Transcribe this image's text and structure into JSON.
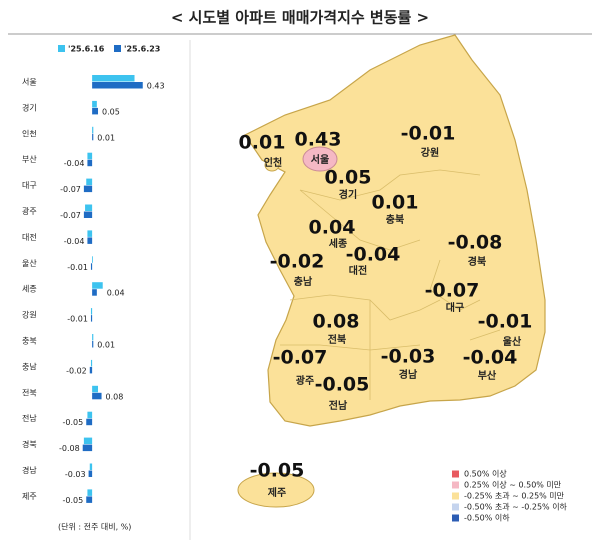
{
  "chart_data": {
    "type": "bar",
    "title": "< 시도별 아파트 매매가격지수 변동률 >",
    "note": "(단위 : 전주 대비, %)",
    "categories": [
      "서울",
      "경기",
      "인천",
      "부산",
      "대구",
      "광주",
      "대전",
      "울산",
      "세종",
      "강원",
      "충북",
      "충남",
      "전북",
      "전남",
      "경북",
      "경남",
      "제주"
    ],
    "series": [
      {
        "name": "'25.6.16",
        "color": "#3dc3ef",
        "values": [
          0.36,
          0.04,
          0.01,
          -0.04,
          -0.05,
          -0.06,
          -0.04,
          0.0,
          0.09,
          -0.01,
          0.01,
          -0.01,
          0.05,
          -0.04,
          -0.07,
          -0.02,
          -0.04
        ]
      },
      {
        "name": "'25.6.23",
        "color": "#1f6cc4",
        "values": [
          0.43,
          0.05,
          0.01,
          -0.04,
          -0.07,
          -0.07,
          -0.04,
          -0.01,
          0.04,
          -0.01,
          0.01,
          -0.02,
          0.08,
          -0.05,
          -0.08,
          -0.03,
          -0.05
        ]
      }
    ],
    "xlim": [
      -0.12,
      0.5
    ],
    "map_legend": [
      {
        "label": "0.50% 이상",
        "color": "#e85a60"
      },
      {
        "label": "0.25% 이상 ~ 0.50% 미만",
        "color": "#f5b8c4"
      },
      {
        "label": "-0.25% 초과 ~ 0.25% 미만",
        "color": "#fbe199"
      },
      {
        "label": "-0.50% 초과 ~ -0.25% 이하",
        "color": "#c5d4ee"
      },
      {
        "label": "-0.50% 이하",
        "color": "#2c5db4"
      }
    ]
  }
}
